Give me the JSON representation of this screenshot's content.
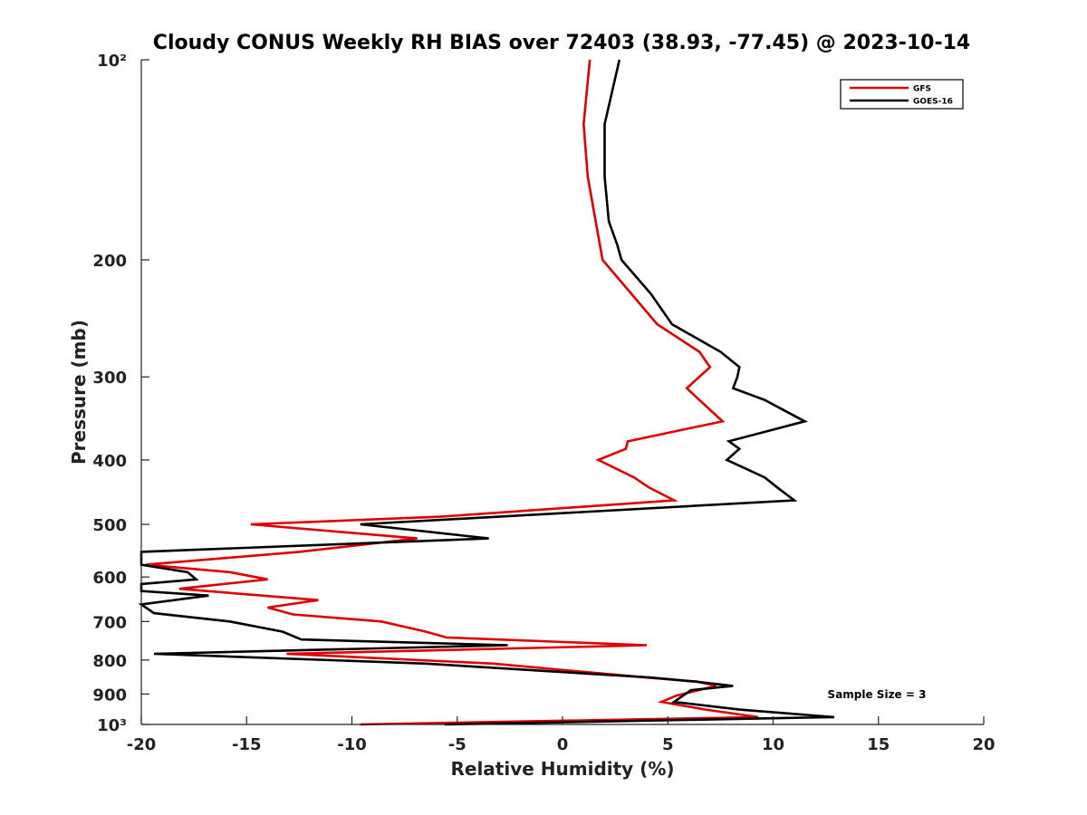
{
  "chart_data": {
    "type": "line",
    "title": "Cloudy CONUS Weekly RH BIAS over 72403 (38.93, -77.45) @ 2023-10-14",
    "xlabel": "Relative Humidity (%)",
    "ylabel": "Pressure (mb)",
    "xlim": [
      -20,
      20
    ],
    "ylim": [
      100,
      1000
    ],
    "yscale": "log",
    "y_reversed": true,
    "grid": false,
    "legend_position": "top-right",
    "x_ticks": [
      -20,
      -15,
      -10,
      -5,
      0,
      5,
      10,
      15,
      20
    ],
    "x_tick_labels": [
      "-20",
      "-15",
      "-10",
      "-5",
      "0",
      "5",
      "10",
      "15",
      "20"
    ],
    "y_ticks": [
      100,
      200,
      300,
      400,
      500,
      600,
      700,
      800,
      900,
      1000
    ],
    "y_tick_labels": [
      "10²",
      "200",
      "300",
      "400",
      "500",
      "600",
      "700",
      "800",
      "900",
      "10³"
    ],
    "annotation": "Sample Size = 3",
    "series": [
      {
        "name": "GFS",
        "color": "#e00000",
        "points": [
          {
            "x": 1.3,
            "p": 100
          },
          {
            "x": 1.0,
            "p": 125
          },
          {
            "x": 1.2,
            "p": 150
          },
          {
            "x": 1.9,
            "p": 200
          },
          {
            "x": 4.5,
            "p": 250
          },
          {
            "x": 6.5,
            "p": 275
          },
          {
            "x": 7.0,
            "p": 290
          },
          {
            "x": 5.9,
            "p": 312
          },
          {
            "x": 6.5,
            "p": 325
          },
          {
            "x": 7.6,
            "p": 350
          },
          {
            "x": 3.1,
            "p": 375
          },
          {
            "x": 3.0,
            "p": 385
          },
          {
            "x": 1.7,
            "p": 400
          },
          {
            "x": 3.4,
            "p": 425
          },
          {
            "x": 4.1,
            "p": 440
          },
          {
            "x": 5.3,
            "p": 460
          },
          {
            "x": -5.8,
            "p": 487
          },
          {
            "x": -14.8,
            "p": 500
          },
          {
            "x": -6.9,
            "p": 525
          },
          {
            "x": -12.5,
            "p": 550
          },
          {
            "x": -19.8,
            "p": 575
          },
          {
            "x": -15.8,
            "p": 590
          },
          {
            "x": -14.0,
            "p": 605
          },
          {
            "x": -18.2,
            "p": 625
          },
          {
            "x": -11.6,
            "p": 650
          },
          {
            "x": -14.0,
            "p": 667
          },
          {
            "x": -12.8,
            "p": 683
          },
          {
            "x": -8.6,
            "p": 700
          },
          {
            "x": -6.5,
            "p": 725
          },
          {
            "x": -5.5,
            "p": 740
          },
          {
            "x": 4.0,
            "p": 760
          },
          {
            "x": -13.1,
            "p": 783
          },
          {
            "x": -3.3,
            "p": 810
          },
          {
            "x": 4.0,
            "p": 850
          },
          {
            "x": 6.4,
            "p": 862
          },
          {
            "x": 7.3,
            "p": 875
          },
          {
            "x": 5.4,
            "p": 905
          },
          {
            "x": 4.7,
            "p": 925
          },
          {
            "x": 6.8,
            "p": 950
          },
          {
            "x": 9.3,
            "p": 975
          },
          {
            "x": -9.6,
            "p": 1000
          }
        ]
      },
      {
        "name": "GOES-16",
        "color": "#000000",
        "points": [
          {
            "x": 2.7,
            "p": 100
          },
          {
            "x": 2.0,
            "p": 125
          },
          {
            "x": 2.0,
            "p": 150
          },
          {
            "x": 2.2,
            "p": 175
          },
          {
            "x": 2.6,
            "p": 190
          },
          {
            "x": 2.8,
            "p": 200
          },
          {
            "x": 4.2,
            "p": 225
          },
          {
            "x": 5.2,
            "p": 250
          },
          {
            "x": 7.5,
            "p": 275
          },
          {
            "x": 8.4,
            "p": 290
          },
          {
            "x": 8.3,
            "p": 300
          },
          {
            "x": 8.1,
            "p": 312
          },
          {
            "x": 9.6,
            "p": 325
          },
          {
            "x": 11.5,
            "p": 350
          },
          {
            "x": 7.9,
            "p": 375
          },
          {
            "x": 8.4,
            "p": 385
          },
          {
            "x": 7.8,
            "p": 400
          },
          {
            "x": 9.6,
            "p": 425
          },
          {
            "x": 10.2,
            "p": 440
          },
          {
            "x": 11.0,
            "p": 460
          },
          {
            "x": -9.6,
            "p": 500
          },
          {
            "x": -3.5,
            "p": 525
          },
          {
            "x": -20.0,
            "p": 550
          },
          {
            "x": -20.0,
            "p": 575
          },
          {
            "x": -17.8,
            "p": 590
          },
          {
            "x": -17.4,
            "p": 605
          },
          {
            "x": -20.0,
            "p": 615
          },
          {
            "x": -20.0,
            "p": 630
          },
          {
            "x": -16.8,
            "p": 640
          },
          {
            "x": -20.0,
            "p": 660
          },
          {
            "x": -19.4,
            "p": 680
          },
          {
            "x": -15.8,
            "p": 700
          },
          {
            "x": -13.3,
            "p": 725
          },
          {
            "x": -12.4,
            "p": 745
          },
          {
            "x": -2.6,
            "p": 760
          },
          {
            "x": -19.4,
            "p": 783
          },
          {
            "x": -6.5,
            "p": 810
          },
          {
            "x": 4.2,
            "p": 850
          },
          {
            "x": 6.3,
            "p": 862
          },
          {
            "x": 8.1,
            "p": 875
          },
          {
            "x": 6.1,
            "p": 888
          },
          {
            "x": 5.3,
            "p": 925
          },
          {
            "x": 8.4,
            "p": 950
          },
          {
            "x": 12.9,
            "p": 975
          },
          {
            "x": -5.6,
            "p": 1000
          }
        ]
      }
    ]
  }
}
